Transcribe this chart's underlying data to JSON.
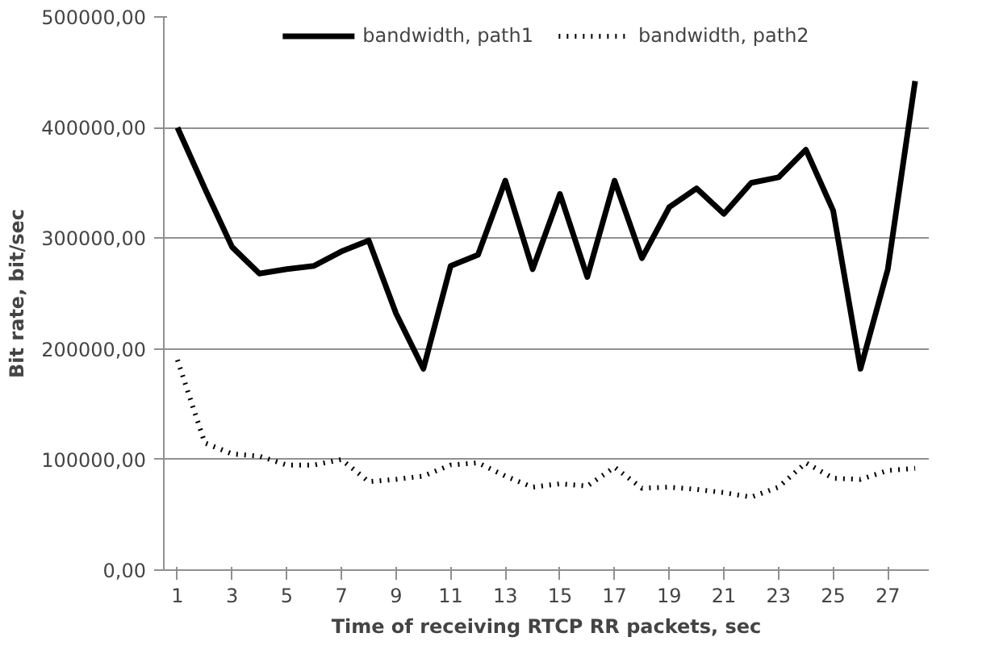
{
  "chart_data": {
    "type": "line",
    "xlabel": "Time of receiving RTCP RR packets, sec",
    "ylabel": "Bit rate, bit/sec",
    "x": [
      1,
      2,
      3,
      4,
      5,
      6,
      7,
      8,
      9,
      10,
      11,
      12,
      13,
      14,
      15,
      16,
      17,
      18,
      19,
      20,
      21,
      22,
      23,
      24,
      25,
      26,
      27,
      28
    ],
    "series": [
      {
        "name": "bandwidth, path1",
        "color": "#000000",
        "line_style": "solid",
        "values": [
          400000,
          345000,
          292000,
          268000,
          272000,
          275000,
          288000,
          298000,
          232000,
          182000,
          275000,
          285000,
          352000,
          272000,
          340000,
          265000,
          352000,
          282000,
          328000,
          345000,
          322000,
          350000,
          355000,
          380000,
          325000,
          182000,
          272000,
          442000
        ]
      },
      {
        "name": "bandwidth, path2",
        "color": "#000000",
        "line_style": "dotted",
        "values": [
          190000,
          115000,
          105000,
          103000,
          95000,
          95000,
          100000,
          80000,
          82000,
          85000,
          95000,
          97000,
          85000,
          75000,
          78000,
          76000,
          93000,
          74000,
          75000,
          73000,
          70000,
          66000,
          75000,
          97000,
          83000,
          82000,
          90000,
          92000
        ]
      }
    ],
    "xlim": [
      0.5,
      28.5
    ],
    "xticks": [
      1,
      3,
      5,
      7,
      9,
      11,
      13,
      15,
      17,
      19,
      21,
      23,
      25,
      27
    ],
    "ylim": [
      0,
      500000
    ],
    "yticks": [
      {
        "value": 0,
        "label": "0,00"
      },
      {
        "value": 100000,
        "label": "100000,00"
      },
      {
        "value": 200000,
        "label": "200000,00"
      },
      {
        "value": 300000,
        "label": "300000,00"
      },
      {
        "value": 400000,
        "label": "400000,00"
      },
      {
        "value": 500000,
        "label": "500000,00"
      }
    ],
    "grid": "y",
    "legend": "top"
  }
}
